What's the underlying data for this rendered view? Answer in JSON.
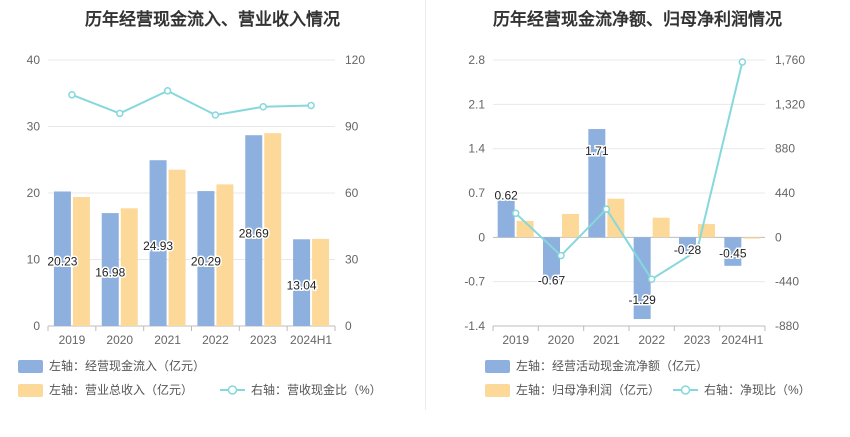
{
  "chart_data": [
    {
      "type": "bar",
      "title": "历年经营现金流入、营业收入情况",
      "categories": [
        "2019",
        "2020",
        "2021",
        "2022",
        "2023",
        "2024H1"
      ],
      "series": [
        {
          "name": "左轴：经营现金流入（亿元）",
          "axis": "left",
          "type": "bar",
          "color": "#8eb0de",
          "values": [
            20.23,
            16.98,
            24.93,
            20.29,
            28.69,
            13.04
          ],
          "labels": [
            "20.23",
            "16.98",
            "24.93",
            "20.29",
            "28.69",
            "13.04"
          ]
        },
        {
          "name": "左轴：营业总收入（亿元）",
          "axis": "left",
          "type": "bar",
          "color": "#fdd999",
          "values": [
            19.4,
            17.7,
            23.5,
            21.3,
            29.0,
            13.1
          ]
        },
        {
          "name": "右轴：营收现金比（%）",
          "axis": "right",
          "type": "line",
          "color": "#86d8dc",
          "values": [
            104.3,
            95.9,
            106.1,
            95.2,
            98.9,
            99.5
          ]
        }
      ],
      "left_ticks": [
        "0",
        "10",
        "20",
        "30",
        "40"
      ],
      "right_ticks": [
        "0",
        "30",
        "60",
        "90",
        "120"
      ],
      "ylim_left": [
        0,
        40
      ],
      "ylim_right": [
        0,
        120
      ]
    },
    {
      "type": "bar",
      "title": "历年经营现金流净额、归母净利润情况",
      "categories": [
        "2019",
        "2020",
        "2021",
        "2022",
        "2023",
        "2024H1"
      ],
      "series": [
        {
          "name": "左轴：经营活动现金流净额（亿元）",
          "axis": "left",
          "type": "bar",
          "color": "#8eb0de",
          "values": [
            0.62,
            -0.67,
            1.71,
            -1.29,
            -0.28,
            -0.45
          ],
          "labels": [
            "0.62",
            "-0.67",
            "1.71",
            "-1.29",
            "-0.28",
            "-0.45"
          ]
        },
        {
          "name": "左轴：归母净利润（亿元）",
          "axis": "left",
          "type": "bar",
          "color": "#fdd999",
          "values": [
            0.26,
            0.37,
            0.61,
            0.31,
            0.21,
            -0.02
          ]
        },
        {
          "name": "右轴：净现比（%）",
          "axis": "right",
          "type": "line",
          "color": "#86d8dc",
          "values": [
            238.5,
            -181.1,
            280.3,
            -416.1,
            -133.3,
            1740
          ]
        }
      ],
      "left_ticks": [
        "-1.4",
        "-0.7",
        "0",
        "0.7",
        "1.4",
        "2.1",
        "2.8"
      ],
      "right_ticks": [
        "-880",
        "-440",
        "0",
        "440",
        "880",
        "1,320",
        "1,760"
      ],
      "ylim_left": [
        -1.4,
        2.8
      ],
      "ylim_right": [
        -880,
        1760
      ]
    }
  ]
}
